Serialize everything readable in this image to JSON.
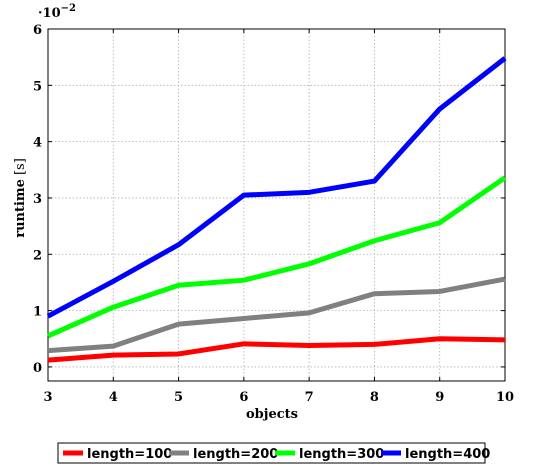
{
  "chart_data": {
    "type": "line",
    "xlabel": "objects",
    "ylabel_main": "runtime",
    "ylabel_unit": "[s]",
    "y_scale_note": "·10",
    "y_scale_exp": "−2",
    "x": [
      3,
      4,
      5,
      6,
      7,
      8,
      9,
      10
    ],
    "x_ticks": [
      "3",
      "4",
      "5",
      "6",
      "7",
      "8",
      "9",
      "10"
    ],
    "y_ticks": [
      "0",
      "1",
      "2",
      "3",
      "4",
      "5",
      "6"
    ],
    "xlim": [
      3,
      10
    ],
    "ylim": [
      -0.25,
      6
    ],
    "y_tick_values": [
      0,
      1,
      2,
      3,
      4,
      5,
      6
    ],
    "grid": true,
    "legend_position": "bottom-center",
    "series": [
      {
        "name": "length=100",
        "color": "#ff0000",
        "values": [
          0.12,
          0.21,
          0.23,
          0.41,
          0.38,
          0.4,
          0.5,
          0.48
        ]
      },
      {
        "name": "length=200",
        "color": "#808080",
        "values": [
          0.29,
          0.37,
          0.76,
          0.86,
          0.96,
          1.3,
          1.34,
          1.56
        ]
      },
      {
        "name": "length=300",
        "color": "#00ff00",
        "values": [
          0.55,
          1.06,
          1.45,
          1.54,
          1.83,
          2.24,
          2.56,
          3.36
        ]
      },
      {
        "name": "length=400",
        "color": "#0000ff",
        "values": [
          0.9,
          1.52,
          2.17,
          3.05,
          3.1,
          3.3,
          4.58,
          5.48
        ]
      }
    ]
  }
}
